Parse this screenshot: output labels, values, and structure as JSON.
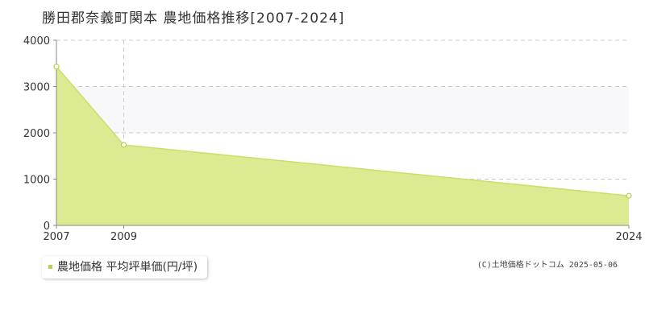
{
  "title": "勝田郡奈義町関本 農地価格推移[2007-2024]",
  "legend_label": "農地価格 平均坪単価(円/坪)",
  "copyright": "(C)土地価格ドットコム 2025-05-06",
  "colors": {
    "fill": "#dceb91",
    "line": "#c8e06a",
    "marker_fill": "#ffffff",
    "marker_stroke": "#b5d24a",
    "legend_marker": "#b5d24a",
    "axis": "#888888",
    "grid": "#cccccc",
    "band": "#f8f8fa"
  },
  "chart_data": {
    "type": "area",
    "title": "勝田郡奈義町関本 農地価格推移[2007-2024]",
    "xlabel": "",
    "ylabel": "",
    "x_tick_labels": [
      "2007",
      "2009",
      "2024"
    ],
    "y_tick_labels": [
      "0",
      "1000",
      "2000",
      "3000",
      "4000"
    ],
    "ylim": [
      0,
      4000
    ],
    "grid": true,
    "legend": "bottom-left",
    "series": [
      {
        "name": "農地価格 平均坪単価(円/坪)",
        "points": [
          {
            "x": "2007",
            "y": 3430
          },
          {
            "x": "2009",
            "y": 1740
          },
          {
            "x": "2024",
            "y": 640
          }
        ]
      }
    ]
  }
}
